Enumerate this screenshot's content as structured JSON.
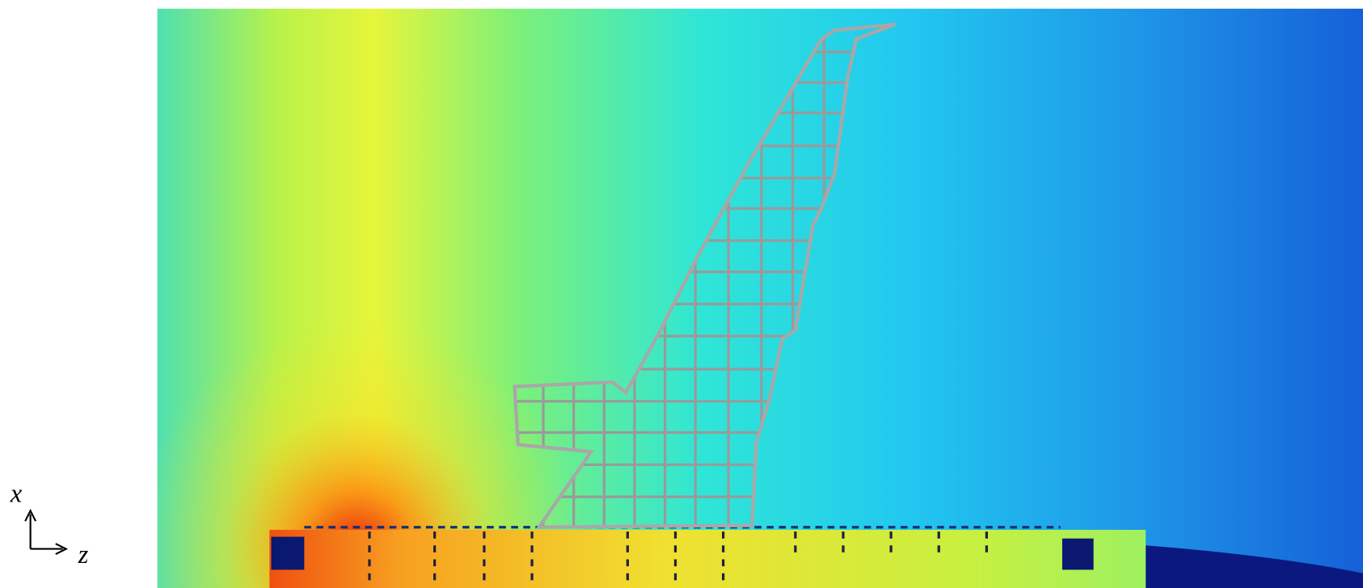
{
  "axis_labels": {
    "vertical": "x",
    "horizontal": "z"
  }
}
